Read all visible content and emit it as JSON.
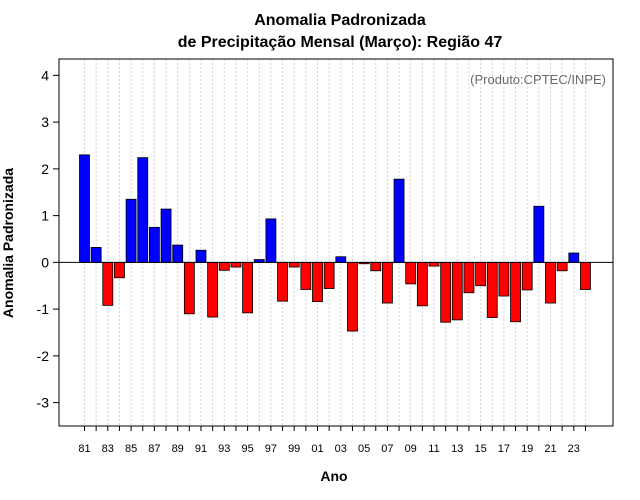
{
  "chart_data": {
    "type": "bar",
    "title_line1": "Anomalia Padronizada",
    "title_line2": "de Precipitação Mensal (Março): Região 47",
    "xlabel": "Ano",
    "ylabel": "Anomalia Padronizada",
    "credit": "(Produto:CPTEC/INPE)",
    "ylim": [
      -3.5,
      4.35
    ],
    "yticks": [
      -3,
      -2,
      -1,
      0,
      1,
      2,
      3,
      4
    ],
    "ytick_labels": [
      "-3",
      "-2",
      "-1",
      "0",
      "1",
      "2",
      "3",
      "4"
    ],
    "categories": [
      "81",
      "82",
      "83",
      "84",
      "85",
      "86",
      "87",
      "88",
      "89",
      "90",
      "91",
      "92",
      "93",
      "94",
      "95",
      "96",
      "97",
      "98",
      "99",
      "00",
      "01",
      "02",
      "03",
      "04",
      "05",
      "06",
      "07",
      "08",
      "09",
      "10",
      "11",
      "12",
      "13",
      "14",
      "15",
      "16",
      "17",
      "18",
      "19",
      "20",
      "21",
      "22",
      "23",
      "24"
    ],
    "xtick_labels": [
      "81",
      "83",
      "85",
      "87",
      "89",
      "91",
      "93",
      "95",
      "97",
      "99",
      "01",
      "03",
      "05",
      "07",
      "09",
      "11",
      "13",
      "15",
      "17",
      "19",
      "21",
      "23"
    ],
    "values": [
      2.3,
      0.32,
      -0.92,
      -0.33,
      1.35,
      2.24,
      0.75,
      1.14,
      0.37,
      -1.1,
      0.26,
      -1.17,
      -0.17,
      -0.1,
      -1.08,
      0.06,
      0.93,
      -0.83,
      -0.1,
      -0.58,
      -0.84,
      -0.56,
      0.12,
      -1.47,
      -0.03,
      -0.18,
      -0.87,
      1.78,
      -0.46,
      -0.93,
      -0.08,
      -1.28,
      -1.23,
      -0.65,
      -0.5,
      -1.18,
      -0.72,
      -1.27,
      -0.59,
      1.2,
      -0.87,
      -0.18,
      0.2,
      -0.58
    ],
    "colors": {
      "positive": "#0000ff",
      "negative": "#ff0000",
      "grid": "#d3d3d3",
      "border": "#000000"
    }
  }
}
